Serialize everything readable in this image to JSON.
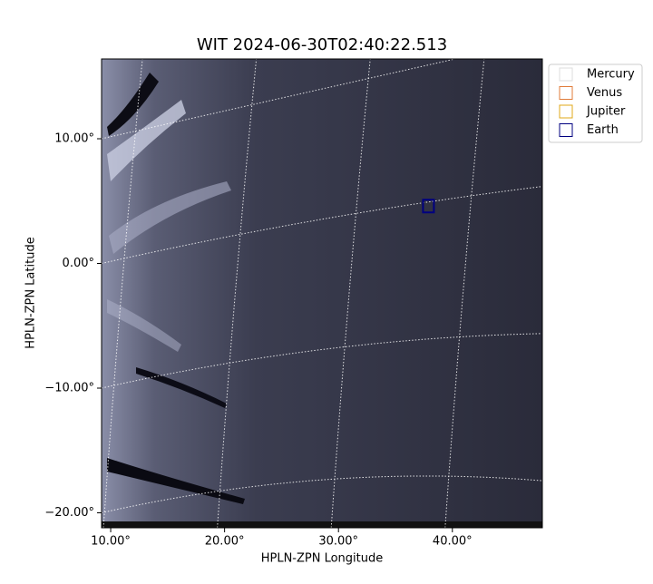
{
  "chart_data": {
    "type": "image",
    "title": "WIT 2024-06-30T02:40:22.513",
    "x_label": "HPLN-ZPN Longitude",
    "y_label": "HPLN-ZPN Latitude",
    "xlim": [
      9.2,
      47.9
    ],
    "ylim": [
      -21.2,
      16.4
    ],
    "xticks": [
      {
        "value": 10,
        "label": "10.00°"
      },
      {
        "value": 20,
        "label": "20.00°"
      },
      {
        "value": 30,
        "label": "30.00°"
      },
      {
        "value": 40,
        "label": "40.00°"
      }
    ],
    "yticks": [
      {
        "value": 10,
        "label": "10.00°"
      },
      {
        "value": 0,
        "label": "0.00°"
      },
      {
        "value": -10,
        "label": "−10.00°"
      },
      {
        "value": -20,
        "label": "−20.00°"
      }
    ],
    "grid": true,
    "legend": "upper right",
    "series": [
      {
        "name": "Mercury",
        "color": "#dddddd"
      },
      {
        "name": "Venus",
        "color": "#e07b39"
      },
      {
        "name": "Jupiter",
        "color": "#e0a818"
      },
      {
        "name": "Earth",
        "color": "#000080",
        "x": [
          37.9
        ],
        "values": [
          4.6
        ]
      }
    ]
  }
}
